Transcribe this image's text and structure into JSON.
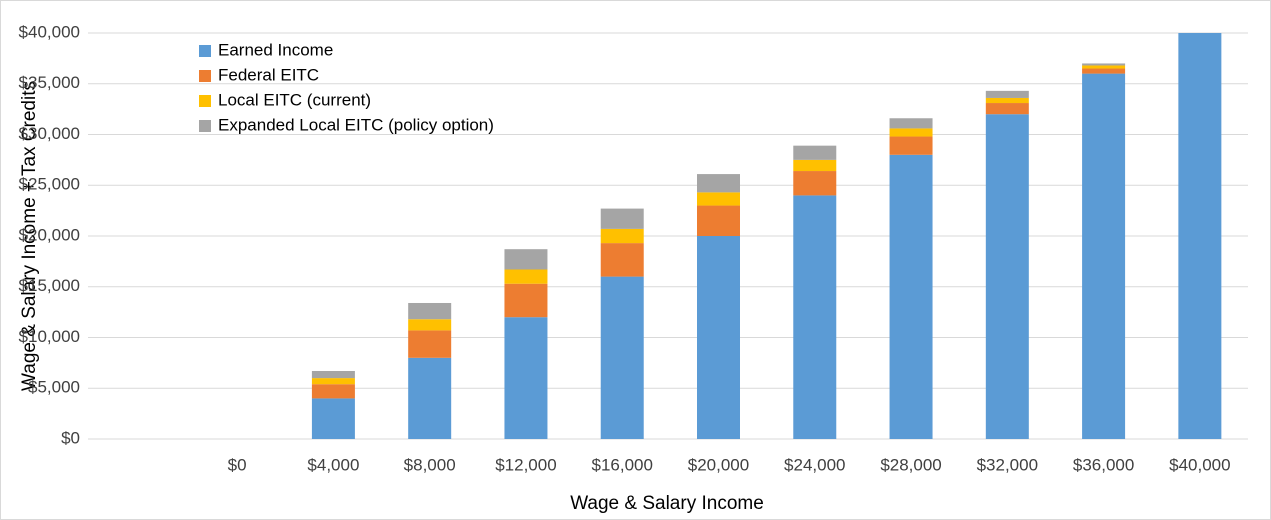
{
  "chart_data": {
    "type": "stacked_bar",
    "x_label": "Wage & Salary Income",
    "y_label": "Wage & Salary Income + Tax Credits",
    "categories": [
      "$0",
      "$4,000",
      "$8,000",
      "$12,000",
      "$16,000",
      "$20,000",
      "$24,000",
      "$28,000",
      "$32,000",
      "$36,000",
      "$40,000"
    ],
    "series": [
      {
        "name": "Earned Income",
        "color": "#5b9bd5",
        "values": [
          0,
          4000,
          8000,
          12000,
          16000,
          20000,
          24000,
          28000,
          32000,
          36000,
          40000
        ]
      },
      {
        "name": "Federal EITC",
        "color": "#ed7d31",
        "values": [
          0,
          1400,
          2700,
          3300,
          3300,
          3000,
          2400,
          1800,
          1100,
          500,
          0
        ]
      },
      {
        "name": "Local EITC (current)",
        "color": "#ffc000",
        "values": [
          0,
          600,
          1100,
          1400,
          1400,
          1300,
          1100,
          800,
          500,
          300,
          0
        ]
      },
      {
        "name": "Expanded Local EITC (policy option)",
        "color": "#a5a5a5",
        "values": [
          0,
          700,
          1600,
          2000,
          2000,
          1800,
          1400,
          1000,
          700,
          200,
          0
        ]
      }
    ],
    "ylim": [
      0,
      40000
    ],
    "yticks": [
      {
        "value": 0,
        "label": "$0"
      },
      {
        "value": 5000,
        "label": "$5,000"
      },
      {
        "value": 10000,
        "label": "$10,000"
      },
      {
        "value": 15000,
        "label": "$15,000"
      },
      {
        "value": 20000,
        "label": "$20,000"
      },
      {
        "value": 25000,
        "label": "$25,000"
      },
      {
        "value": 30000,
        "label": "$30,000"
      },
      {
        "value": 35000,
        "label": "$35,000"
      },
      {
        "value": 40000,
        "label": "$40,000"
      }
    ],
    "grid": true,
    "legend": "upper-left"
  }
}
